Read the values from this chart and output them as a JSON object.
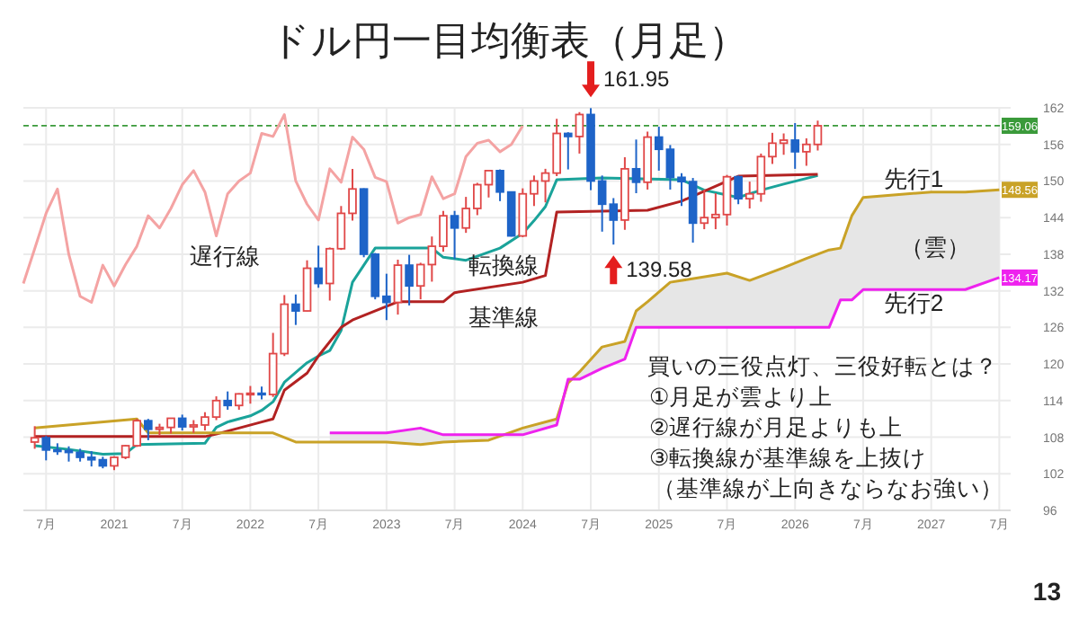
{
  "chart_data": {
    "type": "candlestick",
    "title": "ドル円一目均衡表（月足）",
    "x": [
      "2020-06",
      "2020-07",
      "2020-08",
      "2020-09",
      "2020-10",
      "2020-11",
      "2020-12",
      "2021-01",
      "2021-02",
      "2021-03",
      "2021-04",
      "2021-05",
      "2021-06",
      "2021-07",
      "2021-08",
      "2021-09",
      "2021-10",
      "2021-11",
      "2021-12",
      "2022-01",
      "2022-02",
      "2022-03",
      "2022-04",
      "2022-05",
      "2022-06",
      "2022-07",
      "2022-08",
      "2022-09",
      "2022-10",
      "2022-11",
      "2022-12",
      "2023-01",
      "2023-02",
      "2023-03",
      "2023-04",
      "2023-05",
      "2023-06",
      "2023-07",
      "2023-08",
      "2023-09",
      "2023-10",
      "2023-11",
      "2023-12",
      "2024-01",
      "2024-02",
      "2024-03",
      "2024-04",
      "2024-05",
      "2024-06",
      "2024-07",
      "2024-08",
      "2024-09",
      "2024-10",
      "2024-11",
      "2024-12",
      "2025-01",
      "2025-02",
      "2025-03",
      "2025-04",
      "2025-05",
      "2025-06",
      "2025-07",
      "2025-08",
      "2025-09",
      "2025-10",
      "2025-11",
      "2025-12",
      "2026-01",
      "2026-02",
      "2026-03"
    ],
    "ohlc": [
      [
        107.2,
        109.8,
        106.1,
        107.9
      ],
      [
        107.9,
        108.2,
        104.2,
        105.9
      ],
      [
        105.9,
        107.0,
        105.1,
        105.8
      ],
      [
        105.8,
        106.5,
        104.0,
        105.5
      ],
      [
        105.5,
        106.1,
        104.0,
        104.7
      ],
      [
        104.7,
        105.7,
        103.2,
        104.3
      ],
      [
        104.3,
        104.8,
        102.9,
        103.3
      ],
      [
        103.3,
        104.9,
        102.6,
        104.7
      ],
      [
        104.7,
        106.7,
        104.4,
        106.6
      ],
      [
        106.6,
        111.0,
        106.4,
        110.7
      ],
      [
        110.7,
        111.0,
        107.5,
        109.3
      ],
      [
        109.3,
        110.2,
        108.3,
        109.6
      ],
      [
        109.6,
        111.1,
        108.6,
        111.1
      ],
      [
        111.1,
        111.7,
        109.1,
        109.7
      ],
      [
        109.7,
        110.8,
        108.7,
        110.0
      ],
      [
        110.0,
        112.1,
        109.1,
        111.3
      ],
      [
        111.3,
        114.7,
        110.8,
        114.0
      ],
      [
        114.0,
        115.5,
        112.5,
        113.2
      ],
      [
        113.2,
        115.2,
        112.5,
        115.1
      ],
      [
        115.1,
        116.4,
        113.5,
        115.2
      ],
      [
        115.2,
        116.3,
        114.2,
        115.0
      ],
      [
        115.0,
        125.1,
        114.6,
        121.7
      ],
      [
        121.7,
        131.3,
        121.3,
        129.8
      ],
      [
        129.8,
        131.4,
        126.4,
        128.7
      ],
      [
        128.7,
        137.0,
        128.6,
        135.7
      ],
      [
        135.7,
        139.4,
        132.5,
        133.2
      ],
      [
        133.2,
        139.1,
        130.4,
        138.9
      ],
      [
        138.9,
        145.9,
        138.7,
        144.7
      ],
      [
        144.7,
        152.0,
        143.5,
        148.7
      ],
      [
        148.7,
        148.8,
        137.5,
        138.0
      ],
      [
        138.0,
        138.2,
        130.6,
        131.1
      ],
      [
        131.1,
        134.8,
        127.2,
        130.1
      ],
      [
        130.1,
        137.1,
        128.1,
        136.2
      ],
      [
        136.2,
        137.9,
        129.6,
        132.8
      ],
      [
        132.8,
        136.6,
        130.6,
        136.3
      ],
      [
        136.3,
        140.9,
        133.5,
        139.3
      ],
      [
        139.3,
        145.1,
        138.4,
        144.3
      ],
      [
        144.3,
        145.1,
        137.2,
        142.3
      ],
      [
        142.3,
        147.4,
        141.5,
        145.5
      ],
      [
        145.5,
        149.7,
        144.4,
        149.4
      ],
      [
        149.4,
        151.7,
        147.3,
        151.7
      ],
      [
        151.7,
        151.9,
        146.7,
        148.2
      ],
      [
        148.2,
        148.2,
        140.9,
        141.0
      ],
      [
        141.0,
        148.8,
        140.8,
        147.9
      ],
      [
        147.9,
        150.9,
        145.9,
        150.0
      ],
      [
        150.0,
        152.0,
        146.5,
        151.3
      ],
      [
        151.3,
        160.2,
        150.8,
        157.8
      ],
      [
        157.8,
        158.0,
        151.9,
        157.3
      ],
      [
        157.3,
        161.3,
        154.5,
        160.9
      ],
      [
        160.9,
        161.95,
        148.5,
        150.0
      ],
      [
        150.0,
        150.9,
        141.7,
        146.2
      ],
      [
        146.2,
        147.2,
        139.58,
        143.6
      ],
      [
        143.6,
        153.9,
        142.0,
        152.0
      ],
      [
        152.0,
        156.8,
        148.0,
        149.8
      ],
      [
        149.8,
        158.1,
        148.6,
        157.2
      ],
      [
        157.2,
        158.9,
        151.7,
        155.2
      ],
      [
        155.2,
        155.9,
        148.6,
        150.6
      ],
      [
        150.6,
        151.3,
        145.9,
        149.9
      ],
      [
        149.9,
        150.5,
        139.9,
        143.1
      ],
      [
        143.1,
        148.6,
        142.1,
        144.0
      ],
      [
        144.0,
        148.0,
        142.1,
        144.5
      ],
      [
        144.5,
        151.0,
        142.7,
        150.7
      ],
      [
        150.7,
        150.9,
        146.2,
        147.1
      ],
      [
        147.1,
        149.9,
        145.5,
        147.9
      ],
      [
        147.9,
        154.5,
        146.6,
        154.0
      ],
      [
        154.0,
        157.9,
        152.8,
        156.2
      ],
      [
        156.2,
        157.8,
        154.3,
        156.7
      ],
      [
        156.7,
        159.5,
        152.0,
        154.8
      ],
      [
        154.8,
        157.0,
        152.5,
        156.0
      ],
      [
        156.0,
        159.9,
        155.0,
        159.06
      ]
    ],
    "colors": [
      "#e04848",
      "#1e64c8",
      "#1e64c8",
      "#1e64c8",
      "#1e64c8",
      "#1e64c8",
      "#1e64c8",
      "#e04848",
      "#e04848",
      "#e04848",
      "#1e64c8",
      "#e04848",
      "#e04848",
      "#1e64c8",
      "#e04848",
      "#e04848",
      "#e04848",
      "#1e64c8",
      "#e04848",
      "#e04848",
      "#1e64c8",
      "#e04848",
      "#e04848",
      "#1e64c8",
      "#e04848",
      "#1e64c8",
      "#e04848",
      "#e04848",
      "#e04848",
      "#1e64c8",
      "#1e64c8",
      "#1e64c8",
      "#e04848",
      "#1e64c8",
      "#e04848",
      "#e04848",
      "#e04848",
      "#1e64c8",
      "#e04848",
      "#e04848",
      "#e04848",
      "#1e64c8",
      "#1e64c8",
      "#e04848",
      "#e04848",
      "#e04848",
      "#e04848",
      "#1e64c8",
      "#e04848",
      "#1e64c8",
      "#1e64c8",
      "#1e64c8",
      "#e04848",
      "#1e64c8",
      "#e04848",
      "#1e64c8",
      "#1e64c8",
      "#1e64c8",
      "#1e64c8",
      "#e04848",
      "#e04848",
      "#e04848",
      "#1e64c8",
      "#e04848",
      "#e04848",
      "#e04848",
      "#e04848",
      "#1e64c8",
      "#e04848",
      "#e04848"
    ],
    "series": [
      {
        "type": "line",
        "name": "遅行線",
        "color": "#f4a3a3",
        "x": [
          "2020-05",
          "2020-06",
          "2020-07",
          "2020-08",
          "2020-09",
          "2020-10",
          "2020-11",
          "2020-12",
          "2021-01",
          "2021-02",
          "2021-03",
          "2021-04",
          "2021-05",
          "2021-06",
          "2021-07",
          "2021-08",
          "2021-09",
          "2021-10",
          "2021-11",
          "2021-12",
          "2022-01",
          "2022-02",
          "2022-03",
          "2022-04",
          "2022-05",
          "2022-06",
          "2022-07",
          "2022-08",
          "2022-09",
          "2022-10",
          "2022-11",
          "2022-12",
          "2023-01",
          "2023-02",
          "2023-03",
          "2023-04",
          "2023-05",
          "2023-06",
          "2023-07",
          "2023-08",
          "2023-09",
          "2023-10",
          "2023-11",
          "2023-12",
          "2024-01"
        ],
        "values": [
          133.2,
          138.9,
          144.7,
          148.7,
          138.0,
          131.1,
          130.1,
          136.2,
          132.8,
          136.3,
          139.3,
          144.3,
          142.3,
          145.5,
          149.4,
          151.7,
          148.2,
          141.0,
          147.9,
          150.0,
          151.3,
          157.8,
          157.3,
          160.9,
          150.0,
          146.2,
          143.6,
          152.0,
          149.8,
          157.2,
          155.2,
          150.6,
          149.9,
          143.1,
          144.0,
          144.5,
          150.7,
          147.1,
          147.9,
          154.0,
          156.2,
          156.7,
          154.8,
          156.0,
          159.06
        ]
      },
      {
        "type": "line",
        "name": "転換線",
        "color": "#1aa39a",
        "x": [
          "2020-06",
          "2020-09",
          "2020-12",
          "2021-02",
          "2021-03",
          "2021-09",
          "2021-10",
          "2021-11",
          "2022-01",
          "2022-02",
          "2022-03",
          "2022-04",
          "2022-06",
          "2022-07",
          "2022-08",
          "2022-09",
          "2022-10",
          "2022-12",
          "2023-05",
          "2023-06",
          "2023-08",
          "2023-11",
          "2024-01",
          "2024-02",
          "2024-03",
          "2024-04",
          "2024-08",
          "2025-03",
          "2025-05",
          "2025-08",
          "2025-10",
          "2025-12",
          "2026-03"
        ],
        "values": [
          106.6,
          106.0,
          105.2,
          105.3,
          106.8,
          107.0,
          109.6,
          110.5,
          111.5,
          112.4,
          113.8,
          117.0,
          120.2,
          121.3,
          122.2,
          125.5,
          133.4,
          139.0,
          139.0,
          137.5,
          137.0,
          139.0,
          141.4,
          143.5,
          145.8,
          150.2,
          150.5,
          150.2,
          148.5,
          147.3,
          148.5,
          149.5,
          150.9
        ]
      },
      {
        "type": "line",
        "name": "基準線",
        "color": "#b22222",
        "x": [
          "2020-06",
          "2021-09",
          "2021-10",
          "2021-12",
          "2022-02",
          "2022-03",
          "2022-04",
          "2022-06",
          "2022-07",
          "2022-09",
          "2022-10",
          "2023-02",
          "2023-06",
          "2023-07",
          "2024-01",
          "2024-03",
          "2024-04",
          "2024-12",
          "2025-03",
          "2025-08",
          "2026-03"
        ],
        "values": [
          108.1,
          108.1,
          108.5,
          109.5,
          110.5,
          111.0,
          115.7,
          118.5,
          121.3,
          126.0,
          127.2,
          130.2,
          130.2,
          131.7,
          133.4,
          134.5,
          144.9,
          145.2,
          146.7,
          150.8,
          151.1
        ]
      },
      {
        "type": "line",
        "name": "先行1",
        "color": "#c9a227",
        "x": [
          "2020-06",
          "2021-03",
          "2021-04",
          "2022-03",
          "2022-05",
          "2022-08",
          "2023-01",
          "2023-04",
          "2023-06",
          "2023-10",
          "2024-01",
          "2024-04",
          "2024-05",
          "2024-06",
          "2024-08",
          "2024-10",
          "2024-11",
          "2024-12",
          "2025-02",
          "2025-07",
          "2025-09",
          "2025-12",
          "2026-02",
          "2026-04",
          "2026-05",
          "2026-06",
          "2026-07",
          "2027-01",
          "2027-04",
          "2027-07"
        ],
        "values": [
          109.5,
          111.0,
          108.7,
          108.7,
          107.2,
          107.2,
          107.2,
          106.8,
          107.2,
          107.5,
          109.5,
          111.0,
          116.9,
          118.7,
          122.8,
          123.7,
          128.7,
          130.2,
          133.4,
          134.9,
          133.7,
          135.8,
          137.3,
          138.7,
          139.0,
          144.3,
          147.3,
          148.2,
          148.2,
          148.56
        ],
        "value_labels": [
          null,
          null,
          null,
          null,
          null,
          null,
          null,
          null,
          null,
          null,
          null,
          null,
          null,
          null,
          null,
          null,
          null,
          null,
          null,
          null,
          null,
          null,
          null,
          null,
          null,
          null,
          null,
          null,
          null,
          "148.56"
        ],
        "lower": [
          null,
          null,
          null,
          null,
          null,
          108.7,
          108.7,
          109.5,
          108.4,
          108.4,
          108.4,
          110.0,
          117.5,
          117.5,
          119.3,
          120.8,
          126.0,
          126.0,
          126.0,
          126.0,
          126.0,
          126.0,
          126.0,
          126.0,
          130.5,
          130.5,
          132.2,
          132.2,
          132.2,
          134.17
        ],
        "upper": [
          null,
          null,
          null,
          null,
          null,
          107.2,
          107.2,
          106.8,
          107.2,
          107.5,
          109.5,
          111.0,
          116.9,
          118.7,
          122.8,
          123.7,
          128.7,
          130.2,
          133.4,
          134.9,
          133.7,
          135.8,
          137.3,
          138.7,
          139.0,
          144.3,
          147.3,
          148.2,
          148.2,
          148.56
        ]
      },
      {
        "type": "line",
        "name": "先行2",
        "color": "#ee22ee",
        "x": [
          "2022-08",
          "2023-01",
          "2023-04",
          "2023-06",
          "2023-10",
          "2024-01",
          "2024-04",
          "2024-05",
          "2024-06",
          "2024-08",
          "2024-10",
          "2024-11",
          "2024-12",
          "2025-02",
          "2025-07",
          "2025-09",
          "2025-12",
          "2026-02",
          "2026-04",
          "2026-05",
          "2026-06",
          "2026-07",
          "2027-01",
          "2027-04",
          "2027-07"
        ],
        "values": [
          108.7,
          108.7,
          109.5,
          108.4,
          108.4,
          108.4,
          110.0,
          117.5,
          117.5,
          119.3,
          120.8,
          126.0,
          126.0,
          126.0,
          126.0,
          126.0,
          126.0,
          126.0,
          126.0,
          130.5,
          130.5,
          132.2,
          132.2,
          132.2,
          134.17
        ],
        "value_labels": [
          null,
          null,
          null,
          null,
          null,
          null,
          null,
          null,
          null,
          null,
          null,
          null,
          null,
          null,
          null,
          null,
          null,
          null,
          null,
          null,
          null,
          null,
          null,
          null,
          "134.17"
        ]
      }
    ],
    "xlim": [
      "2020-05",
      "2027-08"
    ],
    "ylim": [
      96,
      162
    ],
    "xticks": [
      {
        "value": "2020-07",
        "label": "7月"
      },
      "2021",
      {
        "value": "2021-07",
        "label": "7月"
      },
      "2022",
      {
        "value": "2022-07",
        "label": "7月"
      },
      "2023",
      {
        "value": "2023-07",
        "label": "7月"
      },
      "2024",
      {
        "value": "2024-07",
        "label": "7月"
      },
      "2025",
      {
        "value": "2025-07",
        "label": "7月"
      },
      "2026",
      {
        "value": "2026-07",
        "label": "7月"
      },
      "2027",
      {
        "value": "2027-07",
        "label": "7月"
      }
    ],
    "yticks": [
      96,
      102,
      108,
      114,
      120,
      126,
      132,
      138,
      144,
      150,
      156,
      162
    ],
    "grid": true,
    "ref_lines": [
      {
        "axis": "y",
        "value": 159.06,
        "label": "159.06",
        "color": "#3a9a3a",
        "line_style": "dashed"
      }
    ],
    "annotations": [
      {
        "text": "161.95",
        "x": "2024-07",
        "y": 161.95
      },
      {
        "text": "139.58",
        "x": "2024-09",
        "y": 139.58
      },
      "（雲）",
      "買いの三役点灯、三役好転とは？",
      "①月足が雲より上",
      "②遅行線が月足よりも上",
      "③転換線が基準線を上抜け",
      "（基準線が上向きならなお強い）",
      "13"
    ]
  }
}
